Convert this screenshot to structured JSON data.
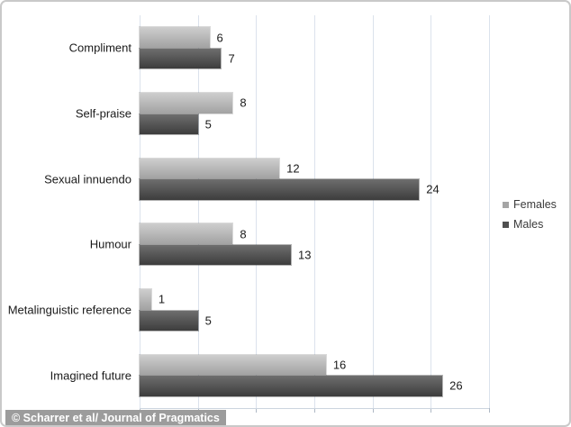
{
  "chart_data": {
    "type": "bar",
    "orientation": "horizontal",
    "title": "",
    "xlabel": "",
    "ylabel": "",
    "categories": [
      "Compliment",
      "Self-praise",
      "Sexual innuendo",
      "Humour",
      "Metalinguistic reference",
      "Imagined future"
    ],
    "series": [
      {
        "name": "Females",
        "values": [
          6,
          8,
          12,
          8,
          1,
          16
        ],
        "gradient_top": "#cecece",
        "gradient_bottom": "#a2a2a2",
        "legend_color": "#a5a5a5"
      },
      {
        "name": "Males",
        "values": [
          7,
          5,
          24,
          13,
          5,
          26
        ],
        "gradient_top": "#6e6e6e",
        "gradient_bottom": "#3d3d3d",
        "legend_color": "#4f4f4f"
      }
    ],
    "xlim": [
      0,
      30
    ],
    "gridline_step": 5,
    "grid": true,
    "axis_tick_labels_visible": false,
    "legend_position": "right"
  },
  "caption": {
    "text": "© Scharrer et al/ Journal of Pragmatics"
  },
  "colors": {
    "gridline": "#dbe2ec",
    "tick": "#aeb8c4",
    "border": "#c9c9c9",
    "label_text": "#1a1a1a",
    "caption_bg": "#9c9c9c",
    "caption_text": "#ffffff"
  }
}
